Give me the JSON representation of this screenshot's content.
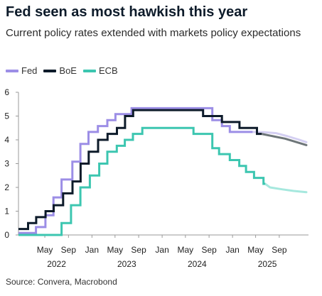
{
  "title": "Fed seen as most hawkish this year",
  "subtitle": "Current policy rates extended with markets policy expectations",
  "source": "Source: Convera, Macrobond",
  "chart_data": {
    "type": "line",
    "title": "Fed seen as most hawkish this year",
    "subtitle": "Current policy rates extended with markets policy expectations",
    "xlabel": "",
    "ylabel": "",
    "ylim": [
      0,
      6
    ],
    "yticks": [
      "0",
      "1",
      "2",
      "3",
      "4",
      "5",
      "6"
    ],
    "xlim": [
      "2021-12-15",
      "2026-01-31"
    ],
    "month_ticks": [
      {
        "date": "2022-05-01",
        "label": "May"
      },
      {
        "date": "2022-09-01",
        "label": "Sep"
      },
      {
        "date": "2023-01-01",
        "label": "Jan"
      },
      {
        "date": "2023-05-01",
        "label": "May"
      },
      {
        "date": "2023-09-01",
        "label": "Sep"
      },
      {
        "date": "2024-01-01",
        "label": "Jan"
      },
      {
        "date": "2024-05-01",
        "label": "May"
      },
      {
        "date": "2024-09-01",
        "label": "Sep"
      },
      {
        "date": "2025-01-01",
        "label": "Jan"
      },
      {
        "date": "2025-05-01",
        "label": "May"
      },
      {
        "date": "2025-09-01",
        "label": "Sep"
      }
    ],
    "year_labels": [
      {
        "year": "2022",
        "center": "2022-07-01"
      },
      {
        "year": "2023",
        "center": "2023-07-01"
      },
      {
        "year": "2024",
        "center": "2024-07-01"
      },
      {
        "year": "2025",
        "center": "2025-07-01"
      }
    ],
    "grid": false,
    "legend_position": "top-left",
    "series": [
      {
        "name": "Fed",
        "color": "#9c8ee6",
        "forecast_color": "#d4cff2",
        "step": true,
        "points": [
          [
            "2021-12-15",
            0.08
          ],
          [
            "2022-03-16",
            0.33
          ],
          [
            "2022-05-04",
            0.83
          ],
          [
            "2022-06-15",
            1.58
          ],
          [
            "2022-07-27",
            2.33
          ],
          [
            "2022-09-21",
            3.08
          ],
          [
            "2022-11-02",
            3.83
          ],
          [
            "2022-12-14",
            4.33
          ],
          [
            "2023-02-01",
            4.58
          ],
          [
            "2023-03-22",
            4.83
          ],
          [
            "2023-05-03",
            5.08
          ],
          [
            "2023-07-26",
            5.33
          ],
          [
            "2024-09-18",
            4.83
          ],
          [
            "2024-11-07",
            4.58
          ],
          [
            "2024-12-18",
            4.33
          ],
          [
            "2025-04-15",
            4.33
          ]
        ],
        "forecast": [
          [
            "2025-04-15",
            4.33
          ],
          [
            "2025-06-15",
            4.32
          ],
          [
            "2025-08-15",
            4.28
          ],
          [
            "2025-10-15",
            4.15
          ],
          [
            "2025-12-15",
            4.0
          ],
          [
            "2026-01-20",
            3.9
          ]
        ]
      },
      {
        "name": "BoE",
        "color": "#0d1b2a",
        "forecast_color": "#6e7679",
        "step": true,
        "points": [
          [
            "2021-12-15",
            0.25
          ],
          [
            "2022-02-03",
            0.5
          ],
          [
            "2022-03-17",
            0.75
          ],
          [
            "2022-05-05",
            1.0
          ],
          [
            "2022-06-16",
            1.25
          ],
          [
            "2022-08-04",
            1.75
          ],
          [
            "2022-09-22",
            2.25
          ],
          [
            "2022-11-03",
            3.0
          ],
          [
            "2022-12-15",
            3.5
          ],
          [
            "2023-02-02",
            4.0
          ],
          [
            "2023-03-23",
            4.25
          ],
          [
            "2023-05-11",
            4.5
          ],
          [
            "2023-06-22",
            5.0
          ],
          [
            "2023-08-03",
            5.25
          ],
          [
            "2024-08-01",
            5.0
          ],
          [
            "2024-11-07",
            4.75
          ],
          [
            "2025-02-06",
            4.5
          ],
          [
            "2025-05-08",
            4.25
          ],
          [
            "2025-06-01",
            4.25
          ]
        ],
        "forecast": [
          [
            "2025-06-01",
            4.25
          ],
          [
            "2025-08-01",
            4.15
          ],
          [
            "2025-10-01",
            4.05
          ],
          [
            "2025-12-01",
            3.9
          ],
          [
            "2026-01-20",
            3.78
          ]
        ]
      },
      {
        "name": "ECB",
        "color": "#3cc6b0",
        "forecast_color": "#a6e8de",
        "step": true,
        "points": [
          [
            "2021-12-15",
            0.0
          ],
          [
            "2022-07-27",
            0.5
          ],
          [
            "2022-09-14",
            1.25
          ],
          [
            "2022-11-02",
            2.0
          ],
          [
            "2022-12-21",
            2.5
          ],
          [
            "2023-02-08",
            3.0
          ],
          [
            "2023-03-22",
            3.5
          ],
          [
            "2023-05-10",
            3.75
          ],
          [
            "2023-06-21",
            4.0
          ],
          [
            "2023-08-02",
            4.25
          ],
          [
            "2023-09-20",
            4.5
          ],
          [
            "2024-06-12",
            4.25
          ],
          [
            "2024-09-18",
            3.65
          ],
          [
            "2024-10-23",
            3.4
          ],
          [
            "2024-12-18",
            3.15
          ],
          [
            "2025-02-05",
            2.9
          ],
          [
            "2025-03-12",
            2.65
          ],
          [
            "2025-04-23",
            2.4
          ],
          [
            "2025-06-11",
            2.15
          ],
          [
            "2025-06-20",
            2.15
          ]
        ],
        "forecast": [
          [
            "2025-06-20",
            2.15
          ],
          [
            "2025-07-15",
            2.0
          ],
          [
            "2025-09-15",
            1.92
          ],
          [
            "2025-11-15",
            1.85
          ],
          [
            "2026-01-20",
            1.8
          ]
        ]
      }
    ]
  }
}
